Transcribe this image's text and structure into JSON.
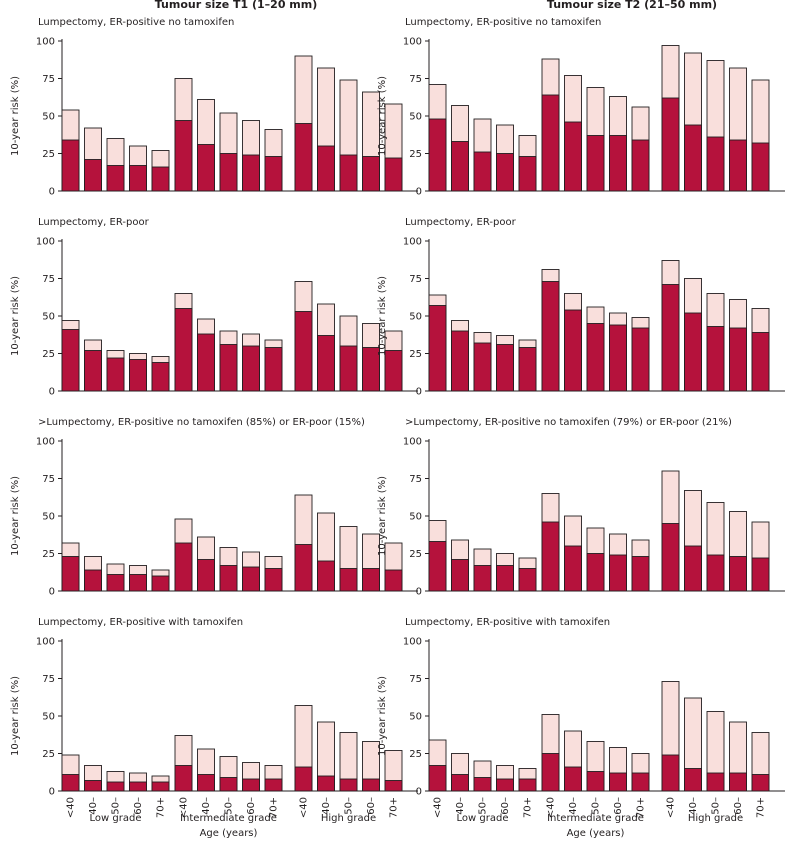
{
  "chart_data": {
    "type": "bar",
    "column_titles": [
      "Tumour size T1 (1–20 mm)",
      "Tumour size T2 (21–50 mm)"
    ],
    "ylabel": "10-year risk (%)",
    "xlabel": "Age (years)",
    "ylim": [
      0,
      100
    ],
    "yticks": [
      "0",
      "25",
      "50",
      "75",
      "100"
    ],
    "age_labels": [
      "<40",
      "40–",
      "50–",
      "60–",
      "70+"
    ],
    "group_labels": [
      "Low grade",
      "Intermediate grade",
      "High grade"
    ],
    "series_names": [
      "inner (dark) risk",
      "outer (light) total risk"
    ],
    "colors": {
      "inner": "#b5123c",
      "outer": "#f9dfdc"
    },
    "rows": [
      {
        "panels": [
          {
            "title": "Lumpectomy, ER-positive no tamoxifen",
            "total": [
              54,
              42,
              35,
              30,
              27,
              75,
              61,
              52,
              47,
              41,
              90,
              82,
              74,
              66,
              58
            ],
            "inner": [
              34,
              21,
              17,
              17,
              16,
              47,
              31,
              25,
              24,
              23,
              45,
              30,
              24,
              23,
              22
            ]
          },
          {
            "title": "Lumpectomy, ER-positive no tamoxifen",
            "total": [
              71,
              57,
              48,
              44,
              37,
              88,
              77,
              69,
              63,
              56,
              97,
              92,
              87,
              82,
              74
            ],
            "inner": [
              48,
              33,
              26,
              25,
              23,
              64,
              46,
              37,
              37,
              34,
              62,
              44,
              36,
              34,
              32
            ]
          }
        ]
      },
      {
        "panels": [
          {
            "title": "Lumpectomy, ER-poor",
            "total": [
              47,
              34,
              27,
              25,
              23,
              65,
              48,
              40,
              38,
              34,
              73,
              58,
              50,
              45,
              40
            ],
            "inner": [
              41,
              27,
              22,
              21,
              19,
              55,
              38,
              31,
              30,
              29,
              53,
              37,
              30,
              29,
              27
            ]
          },
          {
            "title": "Lumpectomy, ER-poor",
            "total": [
              64,
              47,
              39,
              37,
              34,
              81,
              65,
              56,
              52,
              49,
              87,
              75,
              65,
              61,
              55
            ],
            "inner": [
              57,
              40,
              32,
              31,
              29,
              73,
              54,
              45,
              44,
              42,
              71,
              52,
              43,
              42,
              39
            ]
          }
        ]
      },
      {
        "panels": [
          {
            "title": ">Lumpectomy, ER-positive no tamoxifen (85%) or ER-poor (15%)",
            "total": [
              32,
              23,
              18,
              17,
              14,
              48,
              36,
              29,
              26,
              23,
              64,
              52,
              43,
              38,
              32
            ],
            "inner": [
              23,
              14,
              11,
              11,
              10,
              32,
              21,
              17,
              16,
              15,
              31,
              20,
              15,
              15,
              14
            ]
          },
          {
            "title": ">Lumpectomy, ER-positive no tamoxifen (79%) or ER-poor (21%)",
            "total": [
              47,
              34,
              28,
              25,
              22,
              65,
              50,
              42,
              38,
              34,
              80,
              67,
              59,
              53,
              46
            ],
            "inner": [
              33,
              21,
              17,
              17,
              15,
              46,
              30,
              25,
              24,
              23,
              45,
              30,
              24,
              23,
              22
            ]
          }
        ]
      },
      {
        "panels": [
          {
            "title": "Lumpectomy, ER-positive with tamoxifen",
            "total": [
              24,
              17,
              13,
              12,
              10,
              37,
              28,
              23,
              19,
              17,
              57,
              46,
              39,
              33,
              27
            ],
            "inner": [
              11,
              7,
              6,
              6,
              6,
              17,
              11,
              9,
              8,
              8,
              16,
              10,
              8,
              8,
              7
            ]
          },
          {
            "title": "Lumpectomy, ER-positive with tamoxifen",
            "total": [
              34,
              25,
              20,
              17,
              15,
              51,
              40,
              33,
              29,
              25,
              73,
              62,
              53,
              46,
              39
            ],
            "inner": [
              17,
              11,
              9,
              8,
              8,
              25,
              16,
              13,
              12,
              12,
              24,
              15,
              12,
              12,
              11
            ]
          }
        ]
      }
    ]
  }
}
